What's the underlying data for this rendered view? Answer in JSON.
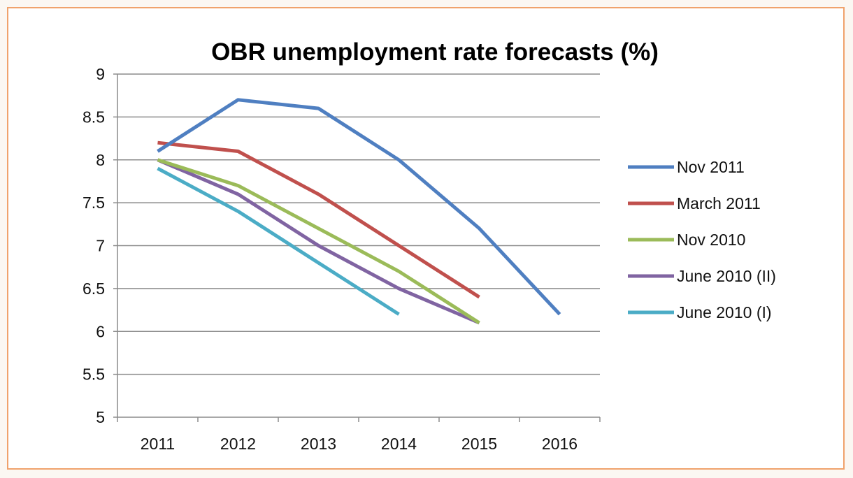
{
  "chart_data": {
    "type": "line",
    "title": "OBR unemployment rate forecasts (%)",
    "xlabel": "",
    "ylabel": "",
    "categories": [
      "2011",
      "2012",
      "2013",
      "2014",
      "2015",
      "2016"
    ],
    "y_ticks": [
      "5",
      "5.5",
      "6",
      "6.5",
      "7",
      "7.5",
      "8",
      "8.5",
      "9"
    ],
    "ylim": [
      5,
      9
    ],
    "grid": "horizontal",
    "legend_position": "right",
    "series": [
      {
        "name": "Nov 2011",
        "color": "#4f7fc1",
        "values": [
          8.1,
          8.7,
          8.6,
          8.0,
          7.2,
          6.2
        ]
      },
      {
        "name": "March 2011",
        "color": "#c0504d",
        "values": [
          8.2,
          8.1,
          7.6,
          7.0,
          6.4,
          null
        ]
      },
      {
        "name": "Nov 2010",
        "color": "#9bbb59",
        "values": [
          8.0,
          7.7,
          7.2,
          6.7,
          6.1,
          null
        ]
      },
      {
        "name": "June 2010 (II)",
        "color": "#8064a2",
        "values": [
          8.0,
          7.6,
          7.0,
          6.5,
          6.1,
          null
        ]
      },
      {
        "name": "June 2010 (I)",
        "color": "#4bacc6",
        "values": [
          7.9,
          7.4,
          6.8,
          6.2,
          null,
          null
        ]
      }
    ]
  }
}
